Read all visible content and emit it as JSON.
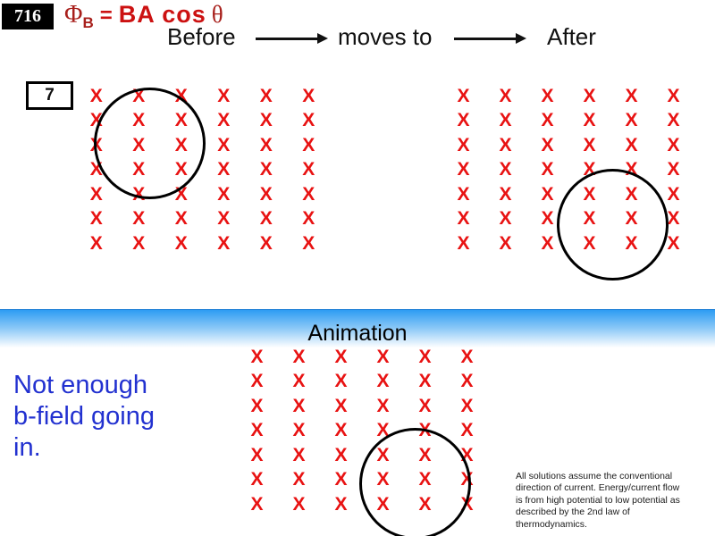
{
  "slide": {
    "badge": "716",
    "formula": {
      "phi": "Φ",
      "sub_b": "B",
      "equals": "=",
      "ba_cos": "BA cos",
      "theta": "θ"
    },
    "header": {
      "before_label": "Before",
      "moves_to_label": "moves to",
      "after_label": "After"
    },
    "problem_number": "7",
    "animation_label": "Animation",
    "note_lines": [
      "Not enough",
      "b-field going",
      "in."
    ],
    "disclaimer_lines": [
      "All solutions assume the conventional",
      "direction of current. Energy/current flow",
      "is from high potential to low potential as",
      "described by the 2nd law of",
      "thermodynamics."
    ],
    "grids": {
      "before": {
        "cols": 6,
        "rows": 7,
        "symbol": "X"
      },
      "after": {
        "cols": 6,
        "rows": 7,
        "symbol": "X"
      },
      "animation": {
        "cols": 6,
        "rows": 7,
        "symbol": "X"
      }
    },
    "colors": {
      "x_red": "#E81212",
      "formula_dark_red": "#A8201C",
      "formula_bright_red": "#CC1111",
      "note_blue": "#2231D0",
      "bar_blue_top": "#2D9CF3",
      "bar_blue_mid": "#8CC9F7"
    }
  }
}
